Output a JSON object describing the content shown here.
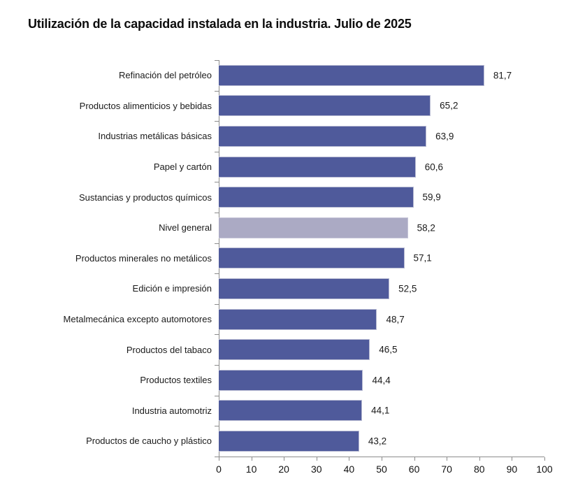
{
  "colors": {
    "bar": "#4f5a9b",
    "highlight_bar": "#abaac4",
    "axis": "#8c8c8c",
    "text": "#1a1a1a"
  },
  "chart_data": {
    "type": "bar",
    "orientation": "horizontal",
    "title": "Utilización de la capacidad instalada en la industria. Julio de 2025",
    "categories": [
      "Refinación del petróleo",
      "Productos alimenticios y bebidas",
      "Industrias metálicas básicas",
      "Papel y cartón",
      "Sustancias y productos químicos",
      "Nivel general",
      "Productos minerales no metálicos",
      "Edición e impresión",
      "Metalmecánica excepto automotores",
      "Productos del tabaco",
      "Productos textiles",
      "Industria automotriz",
      "Productos de caucho y plástico"
    ],
    "values": [
      81.7,
      65.2,
      63.9,
      60.6,
      59.9,
      58.2,
      57.1,
      52.5,
      48.7,
      46.5,
      44.4,
      44.1,
      43.2
    ],
    "value_labels": [
      "81,7",
      "65,2",
      "63,9",
      "60,6",
      "59,9",
      "58,2",
      "57,1",
      "52,5",
      "48,7",
      "46,5",
      "44,4",
      "44,1",
      "43,2"
    ],
    "highlight_category": "Nivel general",
    "highlight_index": 5,
    "xlim": [
      0,
      100
    ],
    "x_ticks": [
      0,
      10,
      20,
      30,
      40,
      50,
      60,
      70,
      80,
      90,
      100
    ],
    "xlabel": "",
    "ylabel": "",
    "grid": false,
    "legend": false,
    "data_labels": true
  }
}
